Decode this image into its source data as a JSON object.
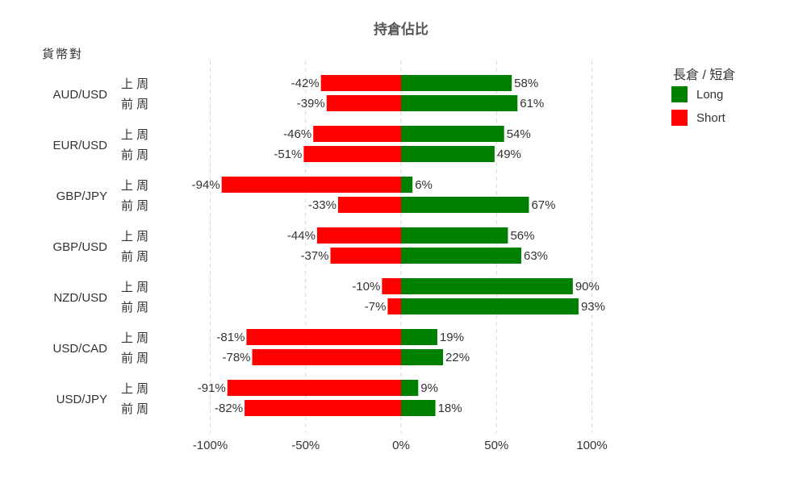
{
  "chart_data": {
    "type": "bar",
    "orientation": "horizontal-diverging",
    "title": "持倉佔比",
    "ylabel": "貨幣對",
    "legend": {
      "title": "長倉 / 短倉",
      "placement": "right",
      "entries": [
        {
          "name": "Long",
          "color": "#008000"
        },
        {
          "name": "Short",
          "color": "#ff0000"
        }
      ]
    },
    "xlim": [
      -100,
      100
    ],
    "x_ticks": [
      -100,
      -50,
      0,
      50,
      100
    ],
    "x_tick_labels": [
      "-100%",
      "-50%",
      "0%",
      "50%",
      "100%"
    ],
    "grid": "vertical dashed",
    "groups": [
      {
        "pair": "AUD/USD",
        "rows": [
          {
            "period": "上 周",
            "short": -42,
            "long": 58,
            "short_label": "-42%",
            "long_label": "58%"
          },
          {
            "period": "前 周",
            "short": -39,
            "long": 61,
            "short_label": "-39%",
            "long_label": "61%"
          }
        ]
      },
      {
        "pair": "EUR/USD",
        "rows": [
          {
            "period": "上 周",
            "short": -46,
            "long": 54,
            "short_label": "-46%",
            "long_label": "54%"
          },
          {
            "period": "前 周",
            "short": -51,
            "long": 49,
            "short_label": "-51%",
            "long_label": "49%"
          }
        ]
      },
      {
        "pair": "GBP/JPY",
        "rows": [
          {
            "period": "上 周",
            "short": -94,
            "long": 6,
            "short_label": "-94%",
            "long_label": "6%"
          },
          {
            "period": "前 周",
            "short": -33,
            "long": 67,
            "short_label": "-33%",
            "long_label": "67%"
          }
        ]
      },
      {
        "pair": "GBP/USD",
        "rows": [
          {
            "period": "上 周",
            "short": -44,
            "long": 56,
            "short_label": "-44%",
            "long_label": "56%"
          },
          {
            "period": "前 周",
            "short": -37,
            "long": 63,
            "short_label": "-37%",
            "long_label": "63%"
          }
        ]
      },
      {
        "pair": "NZD/USD",
        "rows": [
          {
            "period": "上 周",
            "short": -10,
            "long": 90,
            "short_label": "-10%",
            "long_label": "90%"
          },
          {
            "period": "前 周",
            "short": -7,
            "long": 93,
            "short_label": "-7%",
            "long_label": "93%"
          }
        ]
      },
      {
        "pair": "USD/CAD",
        "rows": [
          {
            "period": "上 周",
            "short": -81,
            "long": 19,
            "short_label": "-81%",
            "long_label": "19%"
          },
          {
            "period": "前 周",
            "short": -78,
            "long": 22,
            "short_label": "-78%",
            "long_label": "22%"
          }
        ]
      },
      {
        "pair": "USD/JPY",
        "rows": [
          {
            "period": "上 周",
            "short": -91,
            "long": 9,
            "short_label": "-91%",
            "long_label": "9%"
          },
          {
            "period": "前 周",
            "short": -82,
            "long": 18,
            "short_label": "-82%",
            "long_label": "18%"
          }
        ]
      }
    ]
  }
}
